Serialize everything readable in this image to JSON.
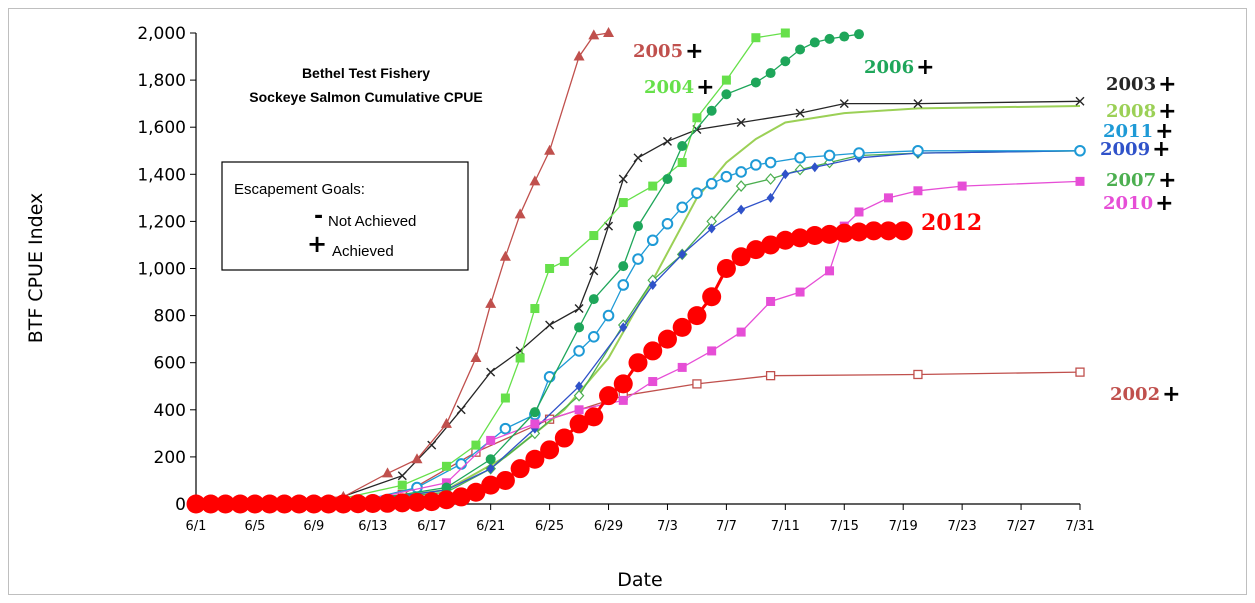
{
  "chart_data": {
    "type": "line",
    "title": "Bethel Test Fishery",
    "subtitle": "Sockeye Salmon Cumulative CPUE",
    "xlabel": "Date",
    "ylabel": "BTF CPUE Index",
    "ylim": [
      0,
      2000
    ],
    "yticks": [
      "0",
      "200",
      "400",
      "600",
      "800",
      "1,000",
      "1,200",
      "1,400",
      "1,600",
      "1,800",
      "2,000"
    ],
    "xticks": [
      "6/1",
      "6/5",
      "6/9",
      "6/13",
      "6/17",
      "6/21",
      "6/25",
      "6/29",
      "7/3",
      "7/7",
      "7/11",
      "7/15",
      "7/19",
      "7/23",
      "7/27",
      "7/31"
    ],
    "grid": false,
    "legend": {
      "heading": "Escapement  Goals:",
      "items": [
        {
          "symbol": "-",
          "label": "Not Achieved"
        },
        {
          "symbol": "+",
          "label": "Achieved"
        }
      ]
    },
    "series": [
      {
        "name": "2002",
        "goal": "+",
        "color": "#c0504d",
        "marker": "open-square",
        "x": [
          "6/1",
          "6/10",
          "6/15",
          "6/20",
          "6/25",
          "6/30",
          "7/5",
          "7/10",
          "7/20",
          "7/31"
        ],
        "y": [
          0,
          5,
          40,
          220,
          360,
          460,
          510,
          545,
          550,
          560
        ]
      },
      {
        "name": "2003",
        "goal": "+",
        "color": "#262626",
        "marker": "x",
        "x": [
          "6/1",
          "6/10",
          "6/15",
          "6/17",
          "6/19",
          "6/21",
          "6/23",
          "6/25",
          "6/27",
          "6/28",
          "6/29",
          "6/30",
          "7/1",
          "7/3",
          "7/5",
          "7/8",
          "7/12",
          "7/15",
          "7/20",
          "7/31"
        ],
        "y": [
          0,
          10,
          120,
          250,
          400,
          560,
          650,
          760,
          830,
          990,
          1180,
          1380,
          1470,
          1540,
          1590,
          1620,
          1660,
          1700,
          1700,
          1710
        ]
      },
      {
        "name": "2004",
        "goal": "+",
        "color": "#66e04a",
        "marker": "square",
        "x": [
          "6/1",
          "6/10",
          "6/15",
          "6/18",
          "6/20",
          "6/22",
          "6/23",
          "6/24",
          "6/25",
          "6/26",
          "6/28",
          "6/30",
          "7/2",
          "7/4",
          "7/5",
          "7/7",
          "7/9",
          "7/11"
        ],
        "y": [
          0,
          10,
          80,
          160,
          250,
          450,
          620,
          830,
          1000,
          1030,
          1140,
          1280,
          1350,
          1450,
          1640,
          1800,
          1980,
          2000
        ]
      },
      {
        "name": "2005",
        "goal": "+",
        "color": "#c0504d",
        "marker": "triangle",
        "x": [
          "6/1",
          "6/11",
          "6/14",
          "6/16",
          "6/18",
          "6/20",
          "6/21",
          "6/22",
          "6/23",
          "6/24",
          "6/25",
          "6/27",
          "6/28",
          "6/29"
        ],
        "y": [
          0,
          30,
          130,
          190,
          340,
          620,
          850,
          1050,
          1230,
          1370,
          1500,
          1900,
          1990,
          2000
        ]
      },
      {
        "name": "2006",
        "goal": "+",
        "color": "#1ea65a",
        "marker": "dot",
        "x": [
          "6/1",
          "6/12",
          "6/18",
          "6/21",
          "6/24",
          "6/27",
          "6/28",
          "6/30",
          "7/1",
          "7/3",
          "7/4",
          "7/6",
          "7/7",
          "7/9",
          "7/10",
          "7/11",
          "7/12",
          "7/13",
          "7/14",
          "7/15",
          "7/16"
        ],
        "y": [
          0,
          10,
          70,
          190,
          390,
          750,
          870,
          1010,
          1180,
          1380,
          1520,
          1670,
          1740,
          1790,
          1830,
          1880,
          1930,
          1960,
          1975,
          1985,
          1995
        ]
      },
      {
        "name": "2007",
        "goal": "+",
        "color": "#4caf50",
        "marker": "open-diamond",
        "x": [
          "6/1",
          "6/12",
          "6/18",
          "6/21",
          "6/24",
          "6/27",
          "6/30",
          "7/2",
          "7/4",
          "7/6",
          "7/8",
          "7/10",
          "7/12",
          "7/14",
          "7/16",
          "7/20",
          "7/31"
        ],
        "y": [
          0,
          10,
          50,
          150,
          300,
          460,
          760,
          950,
          1060,
          1200,
          1350,
          1380,
          1420,
          1450,
          1480,
          1490,
          1500
        ]
      },
      {
        "name": "2008",
        "goal": "+",
        "color": "#9bd056",
        "marker": "line",
        "x": [
          "6/1",
          "6/12",
          "6/18",
          "6/22",
          "6/26",
          "6/29",
          "7/2",
          "7/5",
          "7/7",
          "7/9",
          "7/11",
          "7/15",
          "7/20",
          "7/31"
        ],
        "y": [
          0,
          10,
          60,
          200,
          400,
          620,
          950,
          1300,
          1450,
          1550,
          1620,
          1660,
          1680,
          1690
        ]
      },
      {
        "name": "2009",
        "goal": "+",
        "color": "#2f52c9",
        "marker": "diamond",
        "x": [
          "6/1",
          "6/12",
          "6/18",
          "6/21",
          "6/24",
          "6/27",
          "6/30",
          "7/2",
          "7/4",
          "7/6",
          "7/8",
          "7/10",
          "7/11",
          "7/13",
          "7/16",
          "7/20",
          "7/31"
        ],
        "y": [
          0,
          10,
          60,
          150,
          320,
          500,
          750,
          930,
          1060,
          1170,
          1250,
          1300,
          1400,
          1430,
          1470,
          1490,
          1500
        ]
      },
      {
        "name": "2010",
        "goal": "+",
        "color": "#e64ed6",
        "marker": "square",
        "x": [
          "6/1",
          "6/12",
          "6/18",
          "6/21",
          "6/24",
          "6/27",
          "6/30",
          "7/2",
          "7/4",
          "7/6",
          "7/8",
          "7/10",
          "7/12",
          "7/14",
          "7/15",
          "7/16",
          "7/18",
          "7/20",
          "7/23",
          "7/31"
        ],
        "y": [
          0,
          10,
          90,
          270,
          340,
          400,
          440,
          520,
          580,
          650,
          730,
          860,
          900,
          990,
          1180,
          1240,
          1300,
          1330,
          1350,
          1370
        ]
      },
      {
        "name": "2011",
        "goal": "+",
        "color": "#1e9ad6",
        "marker": "open-circle",
        "x": [
          "6/1",
          "6/12",
          "6/16",
          "6/19",
          "6/22",
          "6/24",
          "6/25",
          "6/27",
          "6/28",
          "6/29",
          "6/30",
          "7/1",
          "7/2",
          "7/3",
          "7/4",
          "7/5",
          "7/6",
          "7/7",
          "7/8",
          "7/9",
          "7/10",
          "7/12",
          "7/14",
          "7/16",
          "7/20",
          "7/31"
        ],
        "y": [
          0,
          10,
          70,
          170,
          320,
          380,
          540,
          650,
          710,
          800,
          930,
          1040,
          1120,
          1190,
          1260,
          1320,
          1360,
          1390,
          1410,
          1440,
          1450,
          1470,
          1480,
          1490,
          1500,
          1500
        ]
      },
      {
        "name": "2012",
        "goal": "",
        "color": "#ff0000",
        "marker": "big-dot",
        "x": [
          "6/1",
          "6/2",
          "6/3",
          "6/4",
          "6/5",
          "6/6",
          "6/7",
          "6/8",
          "6/9",
          "6/10",
          "6/11",
          "6/12",
          "6/13",
          "6/14",
          "6/15",
          "6/16",
          "6/17",
          "6/18",
          "6/19",
          "6/20",
          "6/21",
          "6/22",
          "6/23",
          "6/24",
          "6/25",
          "6/26",
          "6/27",
          "6/28",
          "6/29",
          "6/30",
          "7/1",
          "7/2",
          "7/3",
          "7/4",
          "7/5",
          "7/6",
          "7/7",
          "7/8",
          "7/9",
          "7/10",
          "7/11",
          "7/12",
          "7/13",
          "7/14",
          "7/15",
          "7/16",
          "7/17",
          "7/18",
          "7/19"
        ],
        "y": [
          0,
          0,
          0,
          0,
          0,
          0,
          0,
          0,
          0,
          0,
          0,
          1,
          2,
          3,
          5,
          7,
          10,
          18,
          30,
          50,
          80,
          100,
          150,
          190,
          230,
          280,
          340,
          370,
          460,
          510,
          600,
          650,
          700,
          750,
          800,
          880,
          1000,
          1050,
          1080,
          1100,
          1120,
          1130,
          1140,
          1145,
          1150,
          1155,
          1160,
          1160,
          1160
        ]
      }
    ],
    "annotations": [
      {
        "text": "2012",
        "color": "#ff0000"
      },
      {
        "text": "+"
      }
    ]
  }
}
